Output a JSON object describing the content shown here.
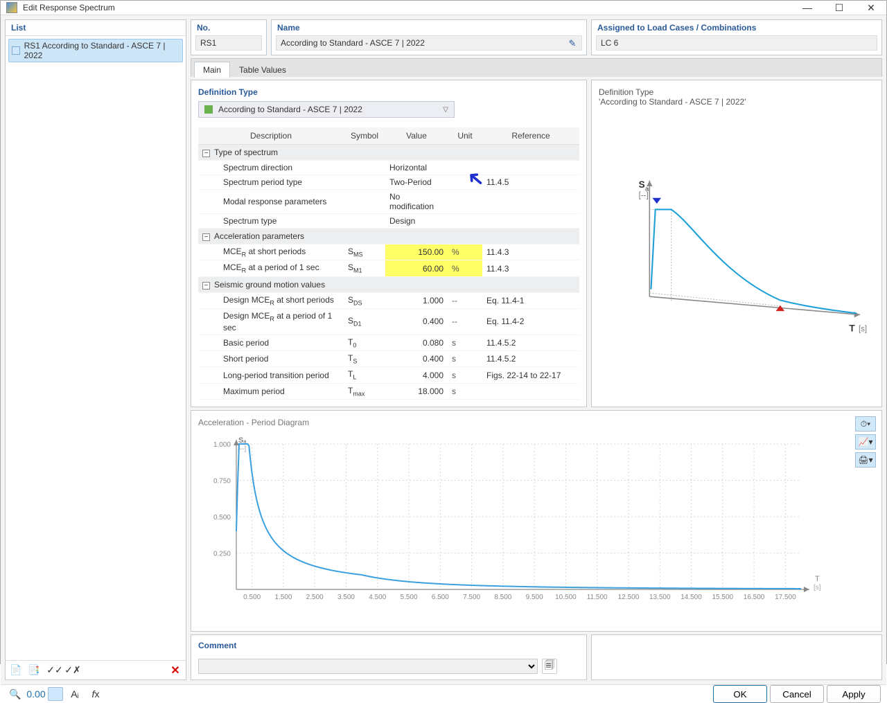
{
  "window": {
    "title": "Edit Response Spectrum"
  },
  "left": {
    "header": "List",
    "item": "RS1 According to Standard - ASCE 7 | 2022"
  },
  "top": {
    "no_label": "No.",
    "no_value": "RS1",
    "name_label": "Name",
    "name_value": "According to Standard - ASCE 7 | 2022",
    "assigned_label": "Assigned to Load Cases / Combinations",
    "assigned_value": "LC 6"
  },
  "tabs": {
    "main": "Main",
    "table": "Table Values"
  },
  "def": {
    "title": "Definition Type",
    "value": "According to Standard - ASCE 7 | 2022"
  },
  "table": {
    "h_desc": "Description",
    "h_sym": "Symbol",
    "h_val": "Value",
    "h_unit": "Unit",
    "h_ref": "Reference",
    "g1": "Type of spectrum",
    "r1": {
      "d": "Spectrum direction",
      "v": "Horizontal"
    },
    "r2": {
      "d": "Spectrum period type",
      "v": "Two-Period",
      "ref": "11.4.5"
    },
    "r3": {
      "d": "Modal response parameters",
      "v": "No modification"
    },
    "r4": {
      "d": "Spectrum type",
      "v": "Design"
    },
    "g2": "Acceleration parameters",
    "r5": {
      "d": "MCE",
      "d2": " at short periods",
      "s": "S",
      "ss": "MS",
      "v": "150.00",
      "u": "%",
      "ref": "11.4.3"
    },
    "r6": {
      "d": "MCE",
      "d2": " at a period of 1 sec",
      "s": "S",
      "ss": "M1",
      "v": "60.00",
      "u": "%",
      "ref": "11.4.3"
    },
    "g3": "Seismic ground motion values",
    "r7": {
      "d": "Design MCE",
      "d2": " at short periods",
      "s": "S",
      "ss": "DS",
      "v": "1.000",
      "u": "--",
      "ref": "Eq. 11.4-1"
    },
    "r8": {
      "d": "Design MCE",
      "d2": " at a period of 1 sec",
      "s": "S",
      "ss": "D1",
      "v": "0.400",
      "u": "--",
      "ref": "Eq. 11.4-2"
    },
    "r9": {
      "d": "Basic period",
      "s": "T",
      "ss": "0",
      "v": "0.080",
      "u": "s",
      "ref": "11.4.5.2"
    },
    "r10": {
      "d": "Short period",
      "s": "T",
      "ss": "S",
      "v": "0.400",
      "u": "s",
      "ref": "11.4.5.2"
    },
    "r11": {
      "d": "Long-period transition period",
      "s": "T",
      "ss": "L",
      "v": "4.000",
      "u": "s",
      "ref": "Figs. 22-14 to 22-17"
    },
    "r12": {
      "d": "Maximum period",
      "s": "T",
      "ss": "max",
      "v": "18.000",
      "u": "s"
    }
  },
  "preview": {
    "l1": "Definition Type",
    "l2": "'According to Standard - ASCE 7 | 2022'",
    "ylab": "Sₐ",
    "yunit": "[--]",
    "xlab": "T",
    "xunit": "[s]"
  },
  "big_chart": {
    "title": "Acceleration - Period Diagram",
    "ylab": "Sₐ",
    "yunit": "[--]",
    "yticks": [
      "0.250",
      "0.500",
      "0.750",
      "1.000"
    ],
    "xticks": [
      "0.500",
      "1.500",
      "2.500",
      "3.500",
      "4.500",
      "5.500",
      "6.500",
      "7.500",
      "8.500",
      "9.500",
      "10.500",
      "11.500",
      "12.500",
      "13.500",
      "14.500",
      "15.500",
      "16.500",
      "17.500"
    ],
    "xlab": "T",
    "xunit": "[s]",
    "color": "#3aa0e0",
    "grid_color": "#d8d8d8"
  },
  "comment": {
    "label": "Comment"
  },
  "buttons": {
    "ok": "OK",
    "cancel": "Cancel",
    "apply": "Apply"
  }
}
